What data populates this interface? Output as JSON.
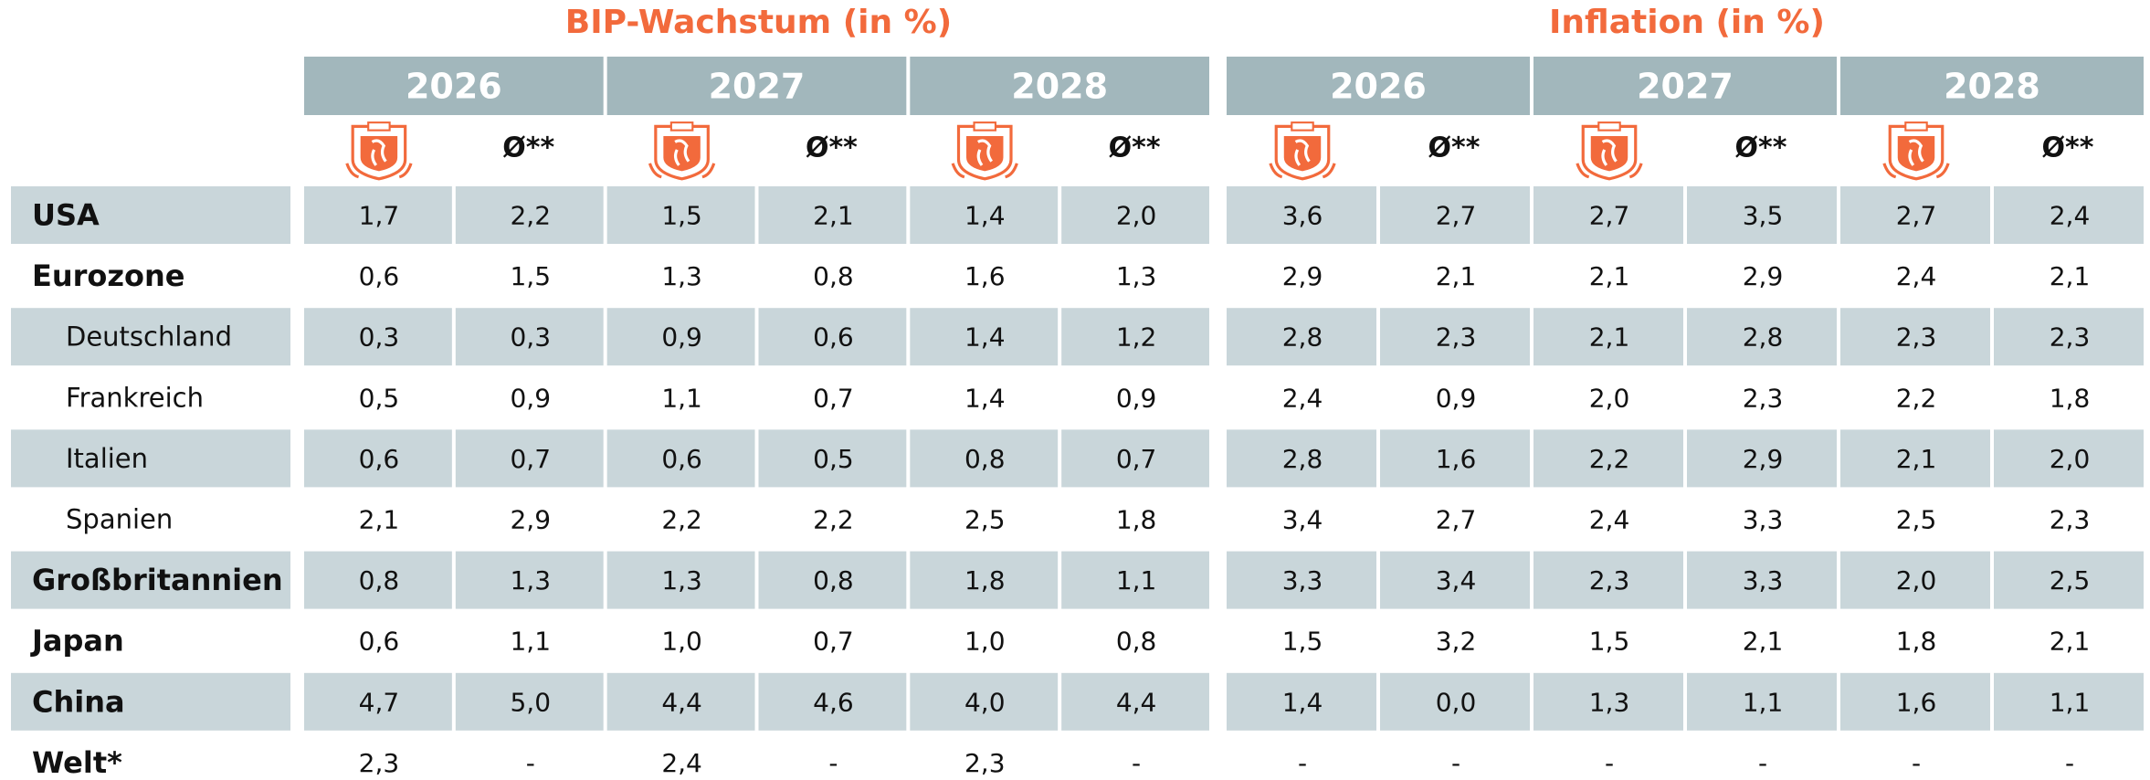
{
  "header": {
    "groups": [
      {
        "title": "BIP-Wachstum (in %)",
        "years": [
          "2026",
          "2027",
          "2028"
        ]
      },
      {
        "title": "Inflation (in %)",
        "years": [
          "2026",
          "2027",
          "2028"
        ]
      }
    ],
    "avg_label": "Ø**"
  },
  "table": {
    "rows": [
      {
        "label": "USA",
        "values": [
          "1,7",
          "2,2",
          "1,5",
          "2,1",
          "1,4",
          "2,0",
          "3,6",
          "2,7",
          "2,7",
          "3,5",
          "2,7",
          "2,4"
        ]
      },
      {
        "label": "Eurozone",
        "values": [
          "0,6",
          "1,5",
          "1,3",
          "0,8",
          "1,6",
          "1,3",
          "2,9",
          "2,1",
          "2,1",
          "2,9",
          "2,4",
          "2,1"
        ]
      },
      {
        "label": "Deutschland",
        "values": [
          "0,3",
          "0,3",
          "0,9",
          "0,6",
          "1,4",
          "1,2",
          "2,8",
          "2,3",
          "2,1",
          "2,8",
          "2,3",
          "2,3"
        ]
      },
      {
        "label": "Frankreich",
        "values": [
          "0,5",
          "0,9",
          "1,1",
          "0,7",
          "1,4",
          "0,9",
          "2,4",
          "0,9",
          "2,0",
          "2,3",
          "2,2",
          "1,8"
        ]
      },
      {
        "label": "Italien",
        "values": [
          "0,6",
          "0,7",
          "0,6",
          "0,5",
          "0,8",
          "0,7",
          "2,8",
          "1,6",
          "2,2",
          "2,9",
          "2,1",
          "2,0"
        ]
      },
      {
        "label": "Spanien",
        "values": [
          "2,1",
          "2,9",
          "2,2",
          "2,2",
          "2,5",
          "1,8",
          "3,4",
          "2,7",
          "2,4",
          "3,3",
          "2,5",
          "2,3"
        ]
      },
      {
        "label": "Großbritannien",
        "values": [
          "0,8",
          "1,3",
          "1,3",
          "0,8",
          "1,8",
          "1,1",
          "3,3",
          "3,4",
          "2,3",
          "3,3",
          "2,0",
          "2,5"
        ]
      },
      {
        "label": "Japan",
        "values": [
          "0,6",
          "1,1",
          "1,0",
          "0,7",
          "1,0",
          "0,8",
          "1,5",
          "3,2",
          "1,5",
          "2,1",
          "1,8",
          "2,1"
        ]
      },
      {
        "label": "China",
        "values": [
          "4,7",
          "5,0",
          "4,4",
          "4,6",
          "4,0",
          "4,4",
          "1,4",
          "0,0",
          "1,3",
          "1,1",
          "1,6",
          "1,1"
        ]
      },
      {
        "label": "Welt*",
        "values": [
          "2,3",
          "-",
          "2,4",
          "-",
          "2,3",
          "-",
          "-",
          "-",
          "-",
          "-",
          "-",
          "-"
        ]
      }
    ]
  }
}
